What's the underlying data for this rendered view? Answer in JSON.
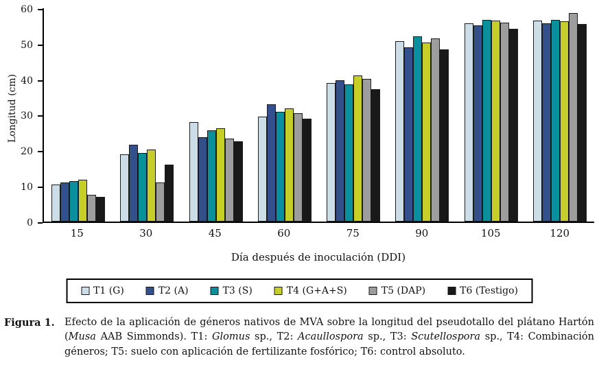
{
  "chart_data": {
    "type": "bar",
    "title": "",
    "xlabel": "Día después de inoculación (DDI)",
    "ylabel": "Longitud (cm)",
    "ylim": [
      0,
      60
    ],
    "yticks": [
      0,
      10,
      20,
      30,
      40,
      50,
      60
    ],
    "grid": false,
    "legend_position": "bottom",
    "categories": [
      "15",
      "30",
      "45",
      "60",
      "75",
      "90",
      "105",
      "120"
    ],
    "series": [
      {
        "name": "T1 (G)",
        "color": "#ccdde8",
        "values": [
          10.5,
          19.0,
          28.0,
          29.5,
          39.0,
          50.8,
          55.7,
          56.5
        ]
      },
      {
        "name": "T2 (A)",
        "color": "#33508c",
        "values": [
          11.0,
          21.6,
          23.7,
          33.0,
          39.7,
          49.0,
          55.2,
          55.8
        ]
      },
      {
        "name": "T3 (S)",
        "color": "#0a8f9c",
        "values": [
          11.4,
          19.3,
          25.7,
          30.8,
          38.5,
          52.0,
          56.8,
          56.8
        ]
      },
      {
        "name": "T4 (G+A+S)",
        "color": "#c6cf2a",
        "values": [
          11.7,
          20.3,
          26.2,
          31.8,
          41.0,
          50.3,
          56.5,
          56.3
        ]
      },
      {
        "name": "T5 (DAP)",
        "color": "#9d9d9d",
        "values": [
          7.5,
          11.0,
          23.3,
          30.5,
          40.2,
          51.5,
          56.0,
          58.7
        ]
      },
      {
        "name": "T6 (Testigo)",
        "color": "#191919",
        "values": [
          7.0,
          16.0,
          22.6,
          29.0,
          37.2,
          48.5,
          54.2,
          55.5
        ]
      }
    ]
  },
  "caption": {
    "label": "Figura 1.",
    "segments": [
      {
        "t": "Efecto de la aplicación de géneros nativos de MVA sobre la longitud del pseudotallo del plátano Hartón (",
        "i": false
      },
      {
        "t": "Musa",
        "i": true
      },
      {
        "t": " AAB Simmonds). T1: ",
        "i": false
      },
      {
        "t": "Glomus",
        "i": true
      },
      {
        "t": " sp., T2: ",
        "i": false
      },
      {
        "t": "Acaullospora",
        "i": true
      },
      {
        "t": " sp., T3: ",
        "i": false
      },
      {
        "t": "Scutellospora",
        "i": true
      },
      {
        "t": " sp., T4: Combinación géneros; T5: suelo con aplicación de fertilizante fosfórico; T6: control absoluto.",
        "i": false
      }
    ]
  }
}
